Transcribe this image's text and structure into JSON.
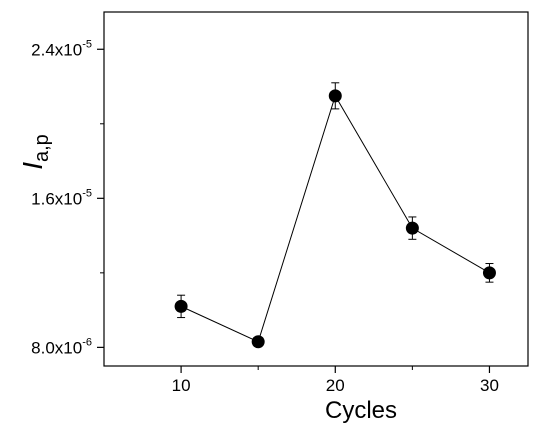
{
  "chart_data": {
    "type": "scatter",
    "connected": true,
    "xlabel": "Cycles",
    "ylabel": {
      "symbol": "I",
      "subscript": "a,p"
    },
    "xlim": [
      5,
      32.5
    ],
    "ylim": [
      7e-06,
      2.6e-05
    ],
    "x_ticks": [
      {
        "value": 10,
        "label": "10"
      },
      {
        "value": 20,
        "label": "20"
      },
      {
        "value": 30,
        "label": "30"
      }
    ],
    "x_minor_ticks": [
      15,
      25
    ],
    "y_ticks": [
      {
        "value": 2.4e-05,
        "mantissa": "2.4x10",
        "exponent": "-5"
      },
      {
        "value": 1.6e-05,
        "mantissa": "1.6x10",
        "exponent": "-5"
      },
      {
        "value": 8e-06,
        "mantissa": "8.0x10",
        "exponent": "-6"
      }
    ],
    "y_minor_ticks": [
      2e-05,
      1.2e-05
    ],
    "grid": false,
    "legend": "none",
    "series": [
      {
        "x": [
          10,
          15,
          20,
          25,
          30
        ],
        "y": [
          1.02e-05,
          8.3e-06,
          2.15e-05,
          1.44e-05,
          1.2e-05
        ],
        "error": [
          6e-07,
          2e-07,
          7e-07,
          6e-07,
          5e-07
        ]
      }
    ],
    "colors": {
      "marker": "#000000",
      "line": "#000000",
      "axis": "#000000"
    }
  }
}
